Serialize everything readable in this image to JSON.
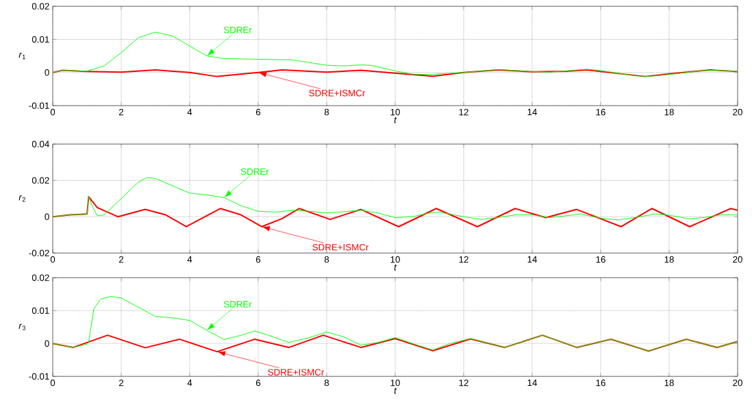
{
  "chart_data": [
    {
      "type": "line",
      "xlabel": "t",
      "ylabel": "*r*$_{1}$",
      "xlim": [
        0,
        20
      ],
      "ylim": [
        -0.01,
        0.02
      ],
      "xticks": [
        0,
        2,
        4,
        6,
        8,
        10,
        12,
        14,
        16,
        18,
        20
      ],
      "yticks": [
        -0.01,
        0,
        0.01,
        0.02
      ],
      "grid": true,
      "series": [
        {
          "name": "SDREr",
          "color": "#00ff00",
          "x": [
            0,
            0.3,
            0.6,
            1,
            1.5,
            2,
            2.5,
            3,
            3.5,
            4,
            4.5,
            5,
            6,
            7,
            7.5,
            8,
            8.5,
            9,
            9.3,
            10,
            10.5,
            11,
            12,
            13,
            14,
            14.5,
            15,
            15.6,
            16,
            17,
            17.4,
            18,
            19,
            19.5,
            20
          ],
          "values": [
            0,
            0.0007,
            0.0006,
            0.0004,
            0.002,
            0.006,
            0.0105,
            0.0122,
            0.011,
            0.008,
            0.005,
            0.0042,
            0.004,
            0.0038,
            0.003,
            0.0022,
            0.002,
            0.0023,
            0.0022,
            0.0005,
            -0.0005,
            -0.0006,
            0,
            0.0009,
            0.0003,
            0.0001,
            0.0005,
            0.001,
            0.0006,
            -0.001,
            -0.0012,
            -0.0006,
            0.0006,
            0.0007,
            0.0003
          ]
        },
        {
          "name": "SDRE+ISMCr",
          "color": "#ff0000",
          "x": [
            0,
            0.3,
            1,
            2,
            3,
            4,
            4.8,
            6,
            6.7,
            8,
            9,
            10,
            11.1,
            12,
            13,
            14,
            15,
            15.6,
            16,
            17.3,
            18,
            19.2,
            20
          ],
          "values": [
            0,
            0.0007,
            0.0003,
            0.0001,
            0.0008,
            0,
            -0.0012,
            0,
            0.0008,
            0.0001,
            0.0007,
            -0.0002,
            -0.0011,
            0,
            0.0008,
            0.0002,
            0.0004,
            0.0008,
            0.0003,
            -0.0012,
            -0.0004,
            0.0008,
            0.0003
          ]
        }
      ],
      "line_style": "solid"
    },
    {
      "type": "line",
      "xlabel": "t",
      "ylabel": "*r*$_{2}$",
      "xlim": [
        0,
        20
      ],
      "ylim": [
        -0.02,
        0.04
      ],
      "xticks": [
        0,
        2,
        4,
        6,
        8,
        10,
        12,
        14,
        16,
        18,
        20
      ],
      "yticks": [
        -0.02,
        0,
        0.02,
        0.04
      ],
      "grid": true,
      "series": [
        {
          "name": "SDREr",
          "color": "#00ff00",
          "x": [
            0,
            0.5,
            0.9,
            1,
            1.05,
            1.15,
            1.3,
            1.5,
            2,
            2.5,
            2.75,
            3,
            3.5,
            4,
            4.5,
            5,
            5.5,
            6,
            6.5,
            7,
            7.5,
            8,
            9,
            9.5,
            10,
            10.5,
            11,
            11.3,
            12,
            12.5,
            13,
            13.5,
            14,
            14.5,
            15,
            15.4,
            16,
            16.5,
            17,
            17.6,
            18,
            18.6,
            19,
            19.5,
            20
          ],
          "values": [
            0,
            0.001,
            0.0015,
            0.0015,
            0.011,
            0.006,
            0.0005,
            0.001,
            0.01,
            0.019,
            0.0215,
            0.021,
            0.017,
            0.013,
            0.012,
            0.0105,
            0.006,
            0.003,
            0.0025,
            0.0035,
            0.003,
            0.002,
            0.0035,
            0.002,
            -0.0005,
            0,
            0.002,
            0.0025,
            0,
            -0.0015,
            -0.0005,
            0.001,
            0.001,
            -0.0005,
            0.0005,
            0.0015,
            -0.0008,
            -0.0018,
            -0.0005,
            0.0015,
            0.0008,
            -0.0012,
            -0.0005,
            0.001,
            0.001
          ]
        },
        {
          "name": "SDRE+ISMCr",
          "color": "#ff0000",
          "x": [
            0,
            0.5,
            1,
            1.05,
            1.3,
            1.9,
            2.7,
            3.3,
            3.9,
            4.9,
            5.5,
            6.1,
            6.7,
            7.2,
            8.1,
            9,
            10.1,
            11.2,
            12.4,
            13.5,
            14.4,
            15.3,
            16.6,
            17.5,
            18.6,
            19.8,
            20
          ],
          "values": [
            0,
            0.001,
            0.0015,
            0.011,
            0.005,
            0,
            0.004,
            0.001,
            -0.0055,
            0.0045,
            0.001,
            -0.0055,
            -0.001,
            0.0045,
            -0.0015,
            0.004,
            -0.0055,
            0.0045,
            -0.0055,
            0.0045,
            -0.0005,
            0.004,
            -0.0055,
            0.0045,
            -0.0055,
            0.0045,
            0.0035
          ]
        }
      ],
      "line_style": "solid"
    },
    {
      "type": "line",
      "xlabel": "t",
      "ylabel": "*r*$_{3}$",
      "xlim": [
        0,
        20
      ],
      "ylim": [
        -0.01,
        0.02
      ],
      "xticks": [
        0,
        2,
        4,
        6,
        8,
        10,
        12,
        14,
        16,
        18,
        20
      ],
      "yticks": [
        -0.01,
        0,
        0.01,
        0.02
      ],
      "grid": true,
      "series": [
        {
          "name": "SDREr",
          "color": "#00ff00",
          "x": [
            0,
            0.6,
            1,
            1.05,
            1.2,
            1.4,
            1.7,
            2,
            2.5,
            3,
            3.5,
            4,
            4.5,
            5,
            5.5,
            5.9,
            6.3,
            6.9,
            7.5,
            8,
            8.5,
            9,
            9.5,
            10,
            10.5,
            11.1,
            11.6,
            12.2,
            13.2,
            14.3,
            15.3,
            16.3,
            17.4,
            18.5,
            19.4,
            20
          ],
          "values": [
            0,
            -0.0012,
            -0.0002,
            0.0005,
            0.0105,
            0.0135,
            0.0143,
            0.0138,
            0.011,
            0.0082,
            0.0078,
            0.007,
            0.004,
            0.0012,
            0.0025,
            0.0038,
            0.0025,
            0.0003,
            0.0018,
            0.0035,
            0.002,
            -0.0005,
            0.0003,
            0.0018,
            0,
            -0.002,
            0,
            0.0015,
            -0.0012,
            0.0025,
            -0.0012,
            0.0013,
            -0.0023,
            0.0013,
            -0.0012,
            0.0006
          ]
        },
        {
          "name": "SDRE+ISMCr",
          "color": "#ff0000",
          "x": [
            0,
            0.6,
            1.6,
            2.7,
            3.7,
            4.8,
            5.9,
            6.9,
            7.9,
            9,
            10,
            11.1,
            12.2,
            13.2,
            14.3,
            15.3,
            16.3,
            17.4,
            18.5,
            19.4,
            20
          ],
          "values": [
            0,
            -0.0012,
            0.0025,
            -0.0013,
            0.0013,
            -0.0025,
            0.0013,
            -0.0012,
            0.0025,
            -0.0012,
            0.0015,
            -0.0022,
            0.0014,
            -0.0012,
            0.0025,
            -0.0012,
            0.0013,
            -0.0023,
            0.0013,
            -0.0012,
            0.0006
          ]
        }
      ],
      "line_style": "solid"
    }
  ]
}
